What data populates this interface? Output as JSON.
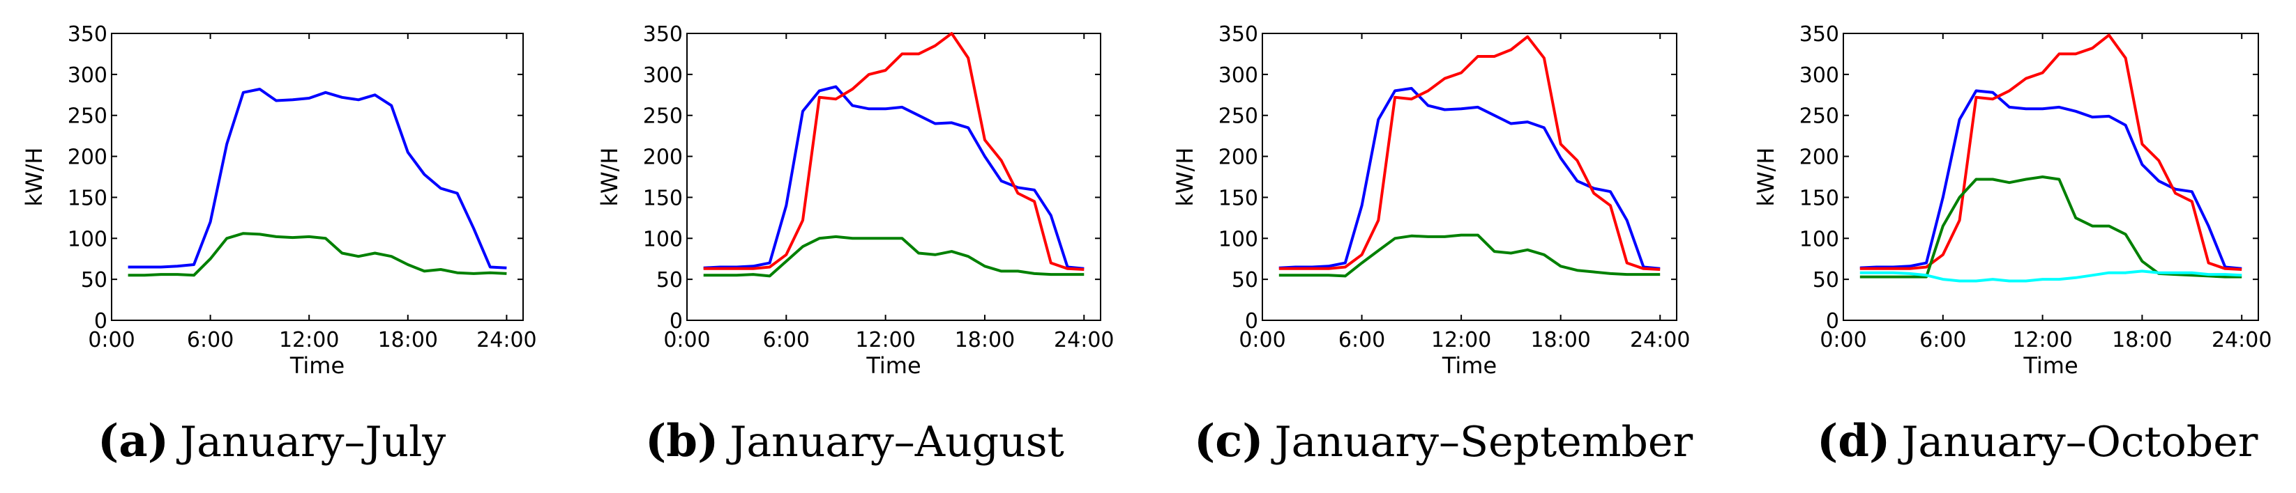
{
  "chart_data": [
    {
      "type": "line",
      "caption_letter": "(a)",
      "caption_text": "January–July",
      "xlabel": "Time",
      "ylabel": "kW/H",
      "xlim": [
        0,
        25
      ],
      "ylim": [
        0,
        350
      ],
      "xticks": [
        "0:00",
        "6:00",
        "12:00",
        "18:00",
        "24:00"
      ],
      "yticks": [
        "0",
        "50",
        "100",
        "150",
        "200",
        "250",
        "300",
        "350"
      ],
      "series": [
        {
          "name": "blue",
          "color": "#0000ff",
          "x": [
            1,
            2,
            3,
            4,
            5,
            6,
            7,
            8,
            9,
            10,
            11,
            12,
            13,
            14,
            15,
            16,
            17,
            18,
            19,
            20,
            21,
            22,
            23,
            24
          ],
          "values": [
            65,
            65,
            65,
            66,
            68,
            120,
            215,
            278,
            282,
            268,
            269,
            271,
            278,
            272,
            269,
            275,
            262,
            205,
            178,
            161,
            155,
            112,
            65,
            64
          ]
        },
        {
          "name": "green",
          "color": "#008000",
          "x": [
            1,
            2,
            3,
            4,
            5,
            6,
            7,
            8,
            9,
            10,
            11,
            12,
            13,
            14,
            15,
            16,
            17,
            18,
            19,
            20,
            21,
            22,
            23,
            24
          ],
          "values": [
            55,
            55,
            56,
            56,
            55,
            75,
            100,
            106,
            105,
            102,
            101,
            102,
            100,
            82,
            78,
            82,
            78,
            68,
            60,
            62,
            58,
            57,
            58,
            57
          ]
        }
      ]
    },
    {
      "type": "line",
      "caption_letter": "(b)",
      "caption_text": "January–August",
      "xlabel": "Time",
      "ylabel": "kW/H",
      "xlim": [
        0,
        25
      ],
      "ylim": [
        0,
        350
      ],
      "xticks": [
        "0:00",
        "6:00",
        "12:00",
        "18:00",
        "24:00"
      ],
      "yticks": [
        "0",
        "50",
        "100",
        "150",
        "200",
        "250",
        "300",
        "350"
      ],
      "series": [
        {
          "name": "blue",
          "color": "#0000ff",
          "x": [
            1,
            2,
            3,
            4,
            5,
            6,
            7,
            8,
            9,
            10,
            11,
            12,
            13,
            14,
            15,
            16,
            17,
            18,
            19,
            20,
            21,
            22,
            23,
            24
          ],
          "values": [
            64,
            65,
            65,
            66,
            70,
            140,
            255,
            280,
            285,
            262,
            258,
            258,
            260,
            250,
            240,
            241,
            235,
            200,
            170,
            162,
            159,
            128,
            65,
            63
          ]
        },
        {
          "name": "red",
          "color": "#ff0000",
          "x": [
            1,
            2,
            3,
            4,
            5,
            6,
            7,
            8,
            9,
            10,
            11,
            12,
            13,
            14,
            15,
            16,
            17,
            18,
            19,
            20,
            21,
            22,
            23,
            24
          ],
          "values": [
            63,
            63,
            63,
            63,
            65,
            80,
            122,
            272,
            270,
            282,
            300,
            305,
            325,
            325,
            335,
            350,
            320,
            220,
            195,
            155,
            145,
            70,
            63,
            62
          ]
        },
        {
          "name": "green",
          "color": "#008000",
          "x": [
            1,
            2,
            3,
            4,
            5,
            6,
            7,
            8,
            9,
            10,
            11,
            12,
            13,
            14,
            15,
            16,
            17,
            18,
            19,
            20,
            21,
            22,
            23,
            24
          ],
          "values": [
            55,
            55,
            55,
            56,
            54,
            72,
            90,
            100,
            102,
            100,
            100,
            100,
            100,
            82,
            80,
            84,
            78,
            66,
            60,
            60,
            57,
            56,
            56,
            56
          ]
        }
      ]
    },
    {
      "type": "line",
      "caption_letter": "(c)",
      "caption_text": "January–September",
      "xlabel": "Time",
      "ylabel": "kW/H",
      "xlim": [
        0,
        25
      ],
      "ylim": [
        0,
        350
      ],
      "xticks": [
        "0:00",
        "6:00",
        "12:00",
        "18:00",
        "24:00"
      ],
      "yticks": [
        "0",
        "50",
        "100",
        "150",
        "200",
        "250",
        "300",
        "350"
      ],
      "series": [
        {
          "name": "blue",
          "color": "#0000ff",
          "x": [
            1,
            2,
            3,
            4,
            5,
            6,
            7,
            8,
            9,
            10,
            11,
            12,
            13,
            14,
            15,
            16,
            17,
            18,
            19,
            20,
            21,
            22,
            23,
            24
          ],
          "values": [
            64,
            65,
            65,
            66,
            70,
            140,
            245,
            280,
            283,
            262,
            257,
            258,
            260,
            250,
            240,
            242,
            235,
            198,
            170,
            161,
            157,
            122,
            65,
            63
          ]
        },
        {
          "name": "red",
          "color": "#ff0000",
          "x": [
            1,
            2,
            3,
            4,
            5,
            6,
            7,
            8,
            9,
            10,
            11,
            12,
            13,
            14,
            15,
            16,
            17,
            18,
            19,
            20,
            21,
            22,
            23,
            24
          ],
          "values": [
            63,
            63,
            63,
            63,
            65,
            80,
            122,
            272,
            270,
            280,
            295,
            302,
            322,
            322,
            330,
            346,
            320,
            215,
            195,
            155,
            140,
            70,
            63,
            62
          ]
        },
        {
          "name": "green",
          "color": "#008000",
          "x": [
            1,
            2,
            3,
            4,
            5,
            6,
            7,
            8,
            9,
            10,
            11,
            12,
            13,
            14,
            15,
            16,
            17,
            18,
            19,
            20,
            21,
            22,
            23,
            24
          ],
          "values": [
            55,
            55,
            55,
            55,
            54,
            70,
            85,
            100,
            103,
            102,
            102,
            104,
            104,
            84,
            82,
            86,
            80,
            66,
            61,
            59,
            57,
            56,
            56,
            56
          ]
        }
      ]
    },
    {
      "type": "line",
      "caption_letter": "(d)",
      "caption_text": "January–October",
      "xlabel": "Time",
      "ylabel": "kW/H",
      "xlim": [
        0,
        25
      ],
      "ylim": [
        0,
        350
      ],
      "xticks": [
        "0:00",
        "6:00",
        "12:00",
        "18:00",
        "24:00"
      ],
      "yticks": [
        "0",
        "50",
        "100",
        "150",
        "200",
        "250",
        "300",
        "350"
      ],
      "series": [
        {
          "name": "blue",
          "color": "#0000ff",
          "x": [
            1,
            2,
            3,
            4,
            5,
            6,
            7,
            8,
            9,
            10,
            11,
            12,
            13,
            14,
            15,
            16,
            17,
            18,
            19,
            20,
            21,
            22,
            23,
            24
          ],
          "values": [
            64,
            65,
            65,
            66,
            70,
            150,
            245,
            280,
            278,
            260,
            258,
            258,
            260,
            255,
            248,
            249,
            238,
            190,
            170,
            160,
            157,
            115,
            65,
            63
          ]
        },
        {
          "name": "red",
          "color": "#ff0000",
          "x": [
            1,
            2,
            3,
            4,
            5,
            6,
            7,
            8,
            9,
            10,
            11,
            12,
            13,
            14,
            15,
            16,
            17,
            18,
            19,
            20,
            21,
            22,
            23,
            24
          ],
          "values": [
            63,
            63,
            63,
            63,
            65,
            80,
            122,
            272,
            270,
            280,
            295,
            302,
            325,
            325,
            332,
            348,
            320,
            215,
            195,
            155,
            145,
            70,
            63,
            62
          ]
        },
        {
          "name": "green",
          "color": "#008000",
          "x": [
            1,
            2,
            3,
            4,
            5,
            6,
            7,
            8,
            9,
            10,
            11,
            12,
            13,
            14,
            15,
            16,
            17,
            18,
            19,
            20,
            21,
            22,
            23,
            24
          ],
          "values": [
            53,
            53,
            53,
            53,
            53,
            115,
            150,
            172,
            172,
            168,
            172,
            175,
            172,
            125,
            115,
            115,
            105,
            72,
            57,
            56,
            55,
            54,
            53,
            53
          ]
        },
        {
          "name": "cyan",
          "color": "#00ffff",
          "x": [
            1,
            2,
            3,
            4,
            5,
            6,
            7,
            8,
            9,
            10,
            11,
            12,
            13,
            14,
            15,
            16,
            17,
            18,
            19,
            20,
            21,
            22,
            23,
            24
          ],
          "values": [
            58,
            58,
            58,
            57,
            55,
            50,
            48,
            48,
            50,
            48,
            48,
            50,
            50,
            52,
            55,
            58,
            58,
            60,
            58,
            58,
            58,
            56,
            56,
            55
          ]
        }
      ]
    }
  ]
}
